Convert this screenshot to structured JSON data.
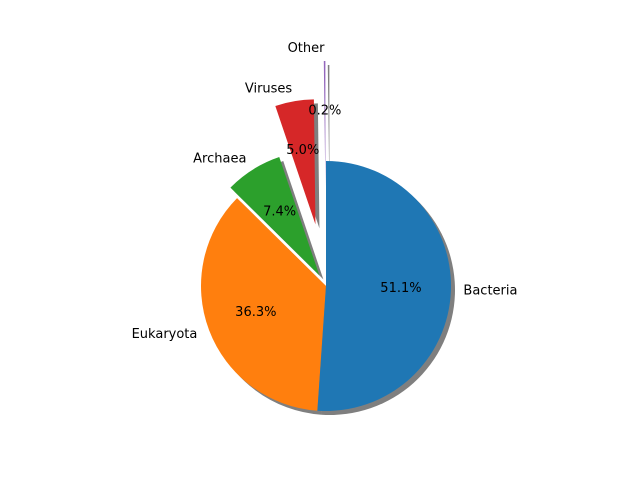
{
  "chart_data": {
    "type": "pie",
    "startangle": 90,
    "direction": "counterclockwise",
    "shadow": true,
    "slices": [
      {
        "label": "Other",
        "value": 0.2,
        "pct_label": "0.2%",
        "color": "#9467bd",
        "explode": 0.8
      },
      {
        "label": "Viruses",
        "value": 5.0,
        "pct_label": "5.0%",
        "color": "#d62728",
        "explode": 0.5
      },
      {
        "label": "Archaea",
        "value": 7.4,
        "pct_label": "7.4%",
        "color": "#2ca02c",
        "explode": 0.1
      },
      {
        "label": "Eukaryota",
        "value": 36.3,
        "pct_label": "36.3%",
        "color": "#ff7f0e",
        "explode": 0
      },
      {
        "label": "Bacteria",
        "value": 51.1,
        "pct_label": "51.1%",
        "color": "#1f77b4",
        "explode": 0
      }
    ]
  }
}
